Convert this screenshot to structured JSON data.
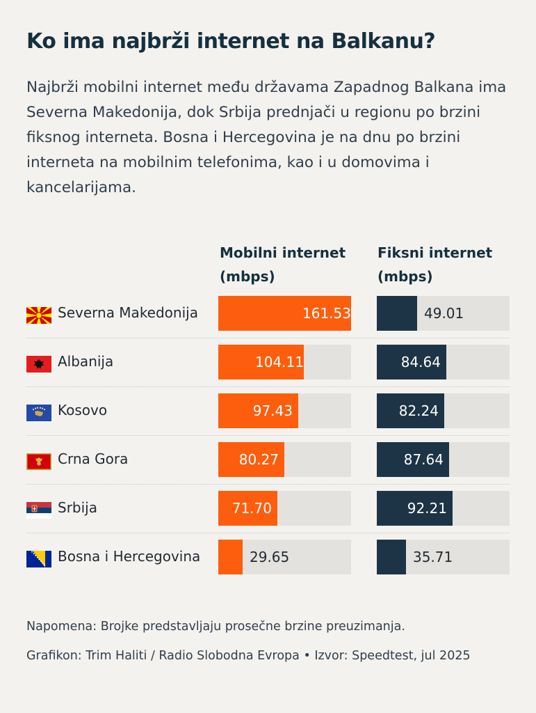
{
  "title": "Ko ima najbrži internet na Balkanu?",
  "subtitle": "Najbrži mobilni internet među državama Zapadnog Balkana ima Severna Makedonija, dok Srbija prednjači u regionu po brzini fiksnog interneta. Bosna i Hercegovina je na dnu po brzini interneta na mobilnim telefonima, kao i u domovima i kancelarijama.",
  "chart_data": {
    "type": "bar",
    "orientation": "horizontal",
    "categories": [
      "Severna Makedonija",
      "Albanija",
      "Kosovo",
      "Crna Gora",
      "Srbija",
      "Bosna i Hercegovina"
    ],
    "series": [
      {
        "name": "Mobilni internet (mbps)",
        "values": [
          161.53,
          104.11,
          97.43,
          80.27,
          71.7,
          29.65
        ],
        "labels": [
          "161.53",
          "104.11",
          "97.43",
          "80.27",
          "71.70",
          "29.65"
        ],
        "color": "#fc5e0e"
      },
      {
        "name": "Fiksni internet (mbps)",
        "values": [
          49.01,
          84.64,
          82.24,
          87.64,
          92.21,
          35.71
        ],
        "labels": [
          "49.01",
          "84.64",
          "82.24",
          "87.64",
          "92.21",
          "35.71"
        ],
        "color": "#1d3446"
      }
    ],
    "xlim": [
      0,
      161.53
    ],
    "legend": "column headers above bars",
    "flags": [
      "north-macedonia-flag",
      "albania-flag",
      "kosovo-flag",
      "montenegro-flag",
      "serbia-flag",
      "bosnia-flag"
    ]
  },
  "notes": {
    "napomena": "Napomena: Brojke predstavljaju prosečne brzine preuzimanja.",
    "credit": "Grafikon: Trim Haliti / Radio Slobodna Evropa • Izvor: Speedtest, jul 2025"
  },
  "colors": {
    "mobile": "#fc5e0e",
    "fixed": "#1d3446",
    "track": "#e4e2de",
    "background": "#f4f2ef"
  }
}
